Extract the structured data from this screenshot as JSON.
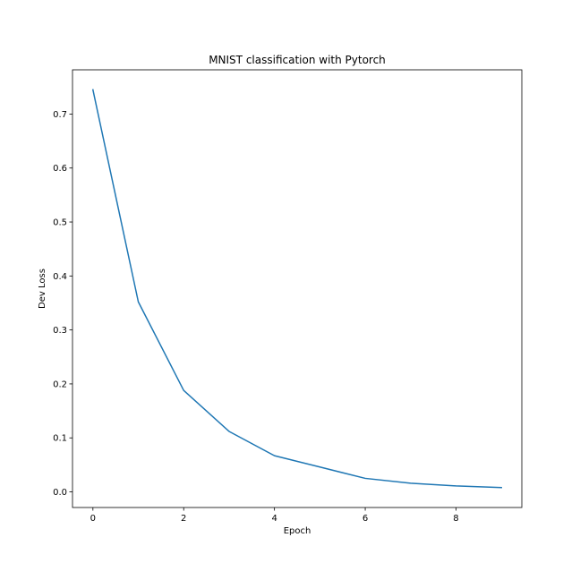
{
  "chart_data": {
    "type": "line",
    "title": "MNIST classification with Pytorch",
    "xlabel": "Epoch",
    "ylabel": "Dev Loss",
    "x": [
      0,
      1,
      2,
      3,
      4,
      5,
      6,
      7,
      8,
      9
    ],
    "series": [
      {
        "values": [
          0.745,
          0.352,
          0.188,
          0.112,
          0.067,
          0.046,
          0.025,
          0.016,
          0.011,
          0.008
        ],
        "color": "#1f77b4"
      }
    ],
    "xlim": [
      -0.45,
      9.45
    ],
    "ylim": [
      -0.029,
      0.782
    ],
    "xticks": [
      0,
      2,
      4,
      6,
      8
    ],
    "xtick_labels": [
      "0",
      "2",
      "4",
      "6",
      "8"
    ],
    "yticks": [
      0.0,
      0.1,
      0.2,
      0.3,
      0.4,
      0.5,
      0.6,
      0.7
    ],
    "ytick_labels": [
      "0.0",
      "0.1",
      "0.2",
      "0.3",
      "0.4",
      "0.5",
      "0.6",
      "0.7"
    ],
    "grid": false
  }
}
